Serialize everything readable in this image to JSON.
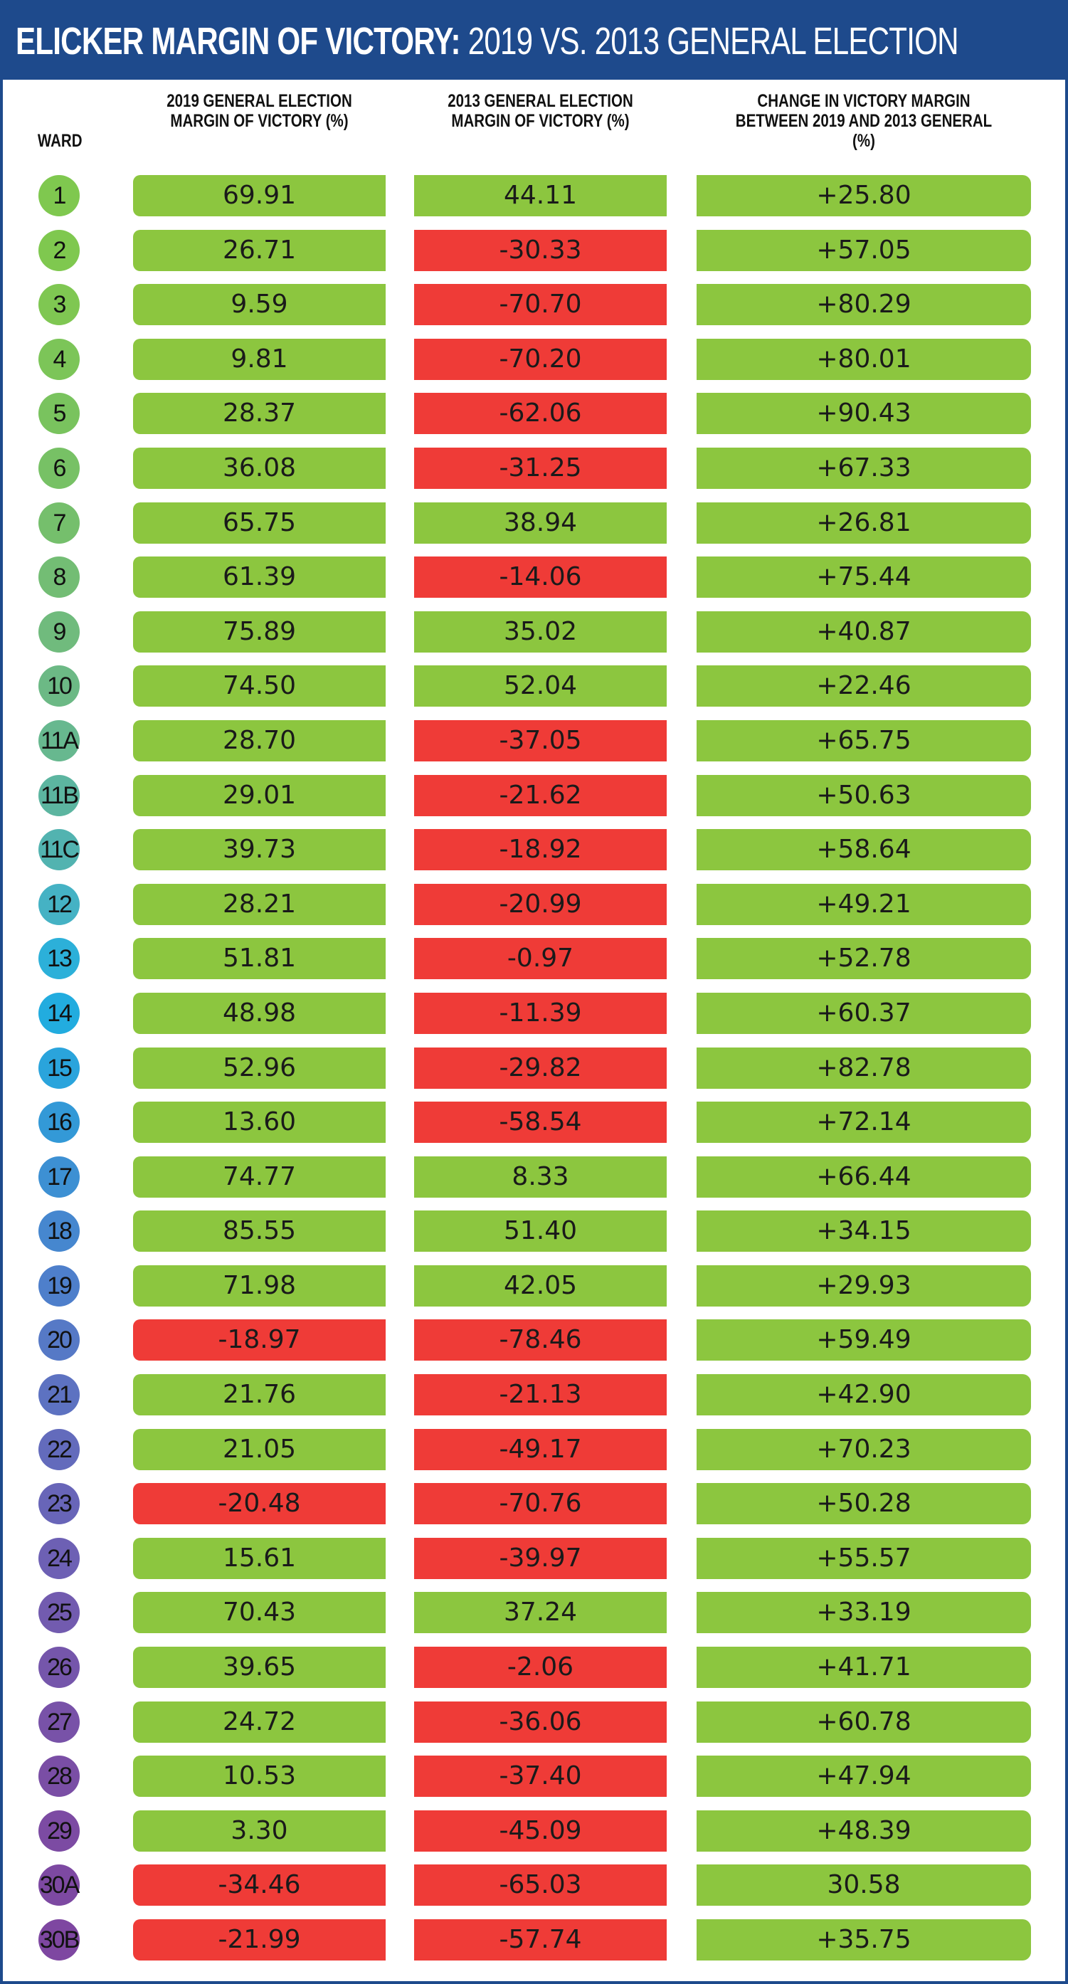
{
  "title": {
    "main": "ELICKER MARGIN OF VICTORY:",
    "sub": " 2019 VS. 2013 GENERAL ELECTION"
  },
  "colors": {
    "header": "#1e4a8c",
    "positive": "#8cc63f",
    "negative": "#ef3b37"
  },
  "chart_data": {
    "type": "table",
    "columns": [
      "WARD",
      "2019 GENERAL ELECTION MARGIN OF VICTORY (%)",
      "2013 GENERAL ELECTION MARGIN OF VICTORY (%)",
      "CHANGE IN VICTORY MARGIN BETWEEN 2019 AND 2013 GENERAL (%)"
    ],
    "rows": [
      {
        "ward": "1",
        "m2019": "69.91",
        "m2013": "44.11",
        "change": "+25.80",
        "color": "#7fc84f"
      },
      {
        "ward": "2",
        "m2019": "26.71",
        "m2013": "-30.33",
        "change": "+57.05",
        "color": "#7fc84f"
      },
      {
        "ward": "3",
        "m2019": "9.59",
        "m2013": "-70.70",
        "change": "+80.29",
        "color": "#7fc752"
      },
      {
        "ward": "4",
        "m2019": "9.81",
        "m2013": "-70.20",
        "change": "+80.01",
        "color": "#7cc558"
      },
      {
        "ward": "5",
        "m2019": "28.37",
        "m2013": "-62.06",
        "change": "+90.43",
        "color": "#79c35e"
      },
      {
        "ward": "6",
        "m2019": "36.08",
        "m2013": "-31.25",
        "change": "+67.33",
        "color": "#77c165"
      },
      {
        "ward": "7",
        "m2019": "65.75",
        "m2013": "38.94",
        "change": "+26.81",
        "color": "#75bf6c"
      },
      {
        "ward": "8",
        "m2019": "61.39",
        "m2013": "-14.06",
        "change": "+75.44",
        "color": "#73bd74"
      },
      {
        "ward": "9",
        "m2019": "75.89",
        "m2013": "35.02",
        "change": "+40.87",
        "color": "#70bb7d"
      },
      {
        "ward": "10",
        "m2019": "74.50",
        "m2013": "52.04",
        "change": "+22.46",
        "color": "#6cb985"
      },
      {
        "ward": "11A",
        "m2019": "28.70",
        "m2013": "-37.05",
        "change": "+65.75",
        "color": "#67b88f"
      },
      {
        "ward": "11B",
        "m2019": "29.01",
        "m2013": "-21.62",
        "change": "+50.63",
        "color": "#5cb5a0"
      },
      {
        "ward": "11C",
        "m2019": "39.73",
        "m2013": "-18.92",
        "change": "+58.64",
        "color": "#52b3b0"
      },
      {
        "ward": "12",
        "m2019": "28.21",
        "m2013": "-20.99",
        "change": "+49.21",
        "color": "#45b2c4"
      },
      {
        "ward": "13",
        "m2019": "51.81",
        "m2013": "-0.97",
        "change": "+52.78",
        "color": "#2cb0d9"
      },
      {
        "ward": "14",
        "m2019": "48.98",
        "m2013": "-11.39",
        "change": "+60.37",
        "color": "#22acdf"
      },
      {
        "ward": "15",
        "m2019": "52.96",
        "m2013": "-29.82",
        "change": "+82.78",
        "color": "#2aa4dc"
      },
      {
        "ward": "16",
        "m2019": "13.60",
        "m2013": "-58.54",
        "change": "+72.14",
        "color": "#3399d7"
      },
      {
        "ward": "17",
        "m2019": "74.77",
        "m2013": "8.33",
        "change": "+66.44",
        "color": "#3d90d3"
      },
      {
        "ward": "18",
        "m2019": "85.55",
        "m2013": "51.40",
        "change": "+34.15",
        "color": "#4687cf"
      },
      {
        "ward": "19",
        "m2019": "71.98",
        "m2013": "42.05",
        "change": "+29.93",
        "color": "#4e7fcb"
      },
      {
        "ward": "20",
        "m2019": "-18.97",
        "m2013": "-78.46",
        "change": "+59.49",
        "color": "#5679c6"
      },
      {
        "ward": "21",
        "m2019": "21.76",
        "m2013": "-21.13",
        "change": "+42.90",
        "color": "#5d72c1"
      },
      {
        "ward": "22",
        "m2019": "21.05",
        "m2013": "-49.17",
        "change": "+70.23",
        "color": "#636bbc"
      },
      {
        "ward": "23",
        "m2019": "-20.48",
        "m2013": "-70.76",
        "change": "+50.28",
        "color": "#6865b8"
      },
      {
        "ward": "24",
        "m2019": "15.61",
        "m2013": "-39.97",
        "change": "+55.57",
        "color": "#6d60b4"
      },
      {
        "ward": "25",
        "m2019": "70.43",
        "m2013": "37.24",
        "change": "+33.19",
        "color": "#725baf"
      },
      {
        "ward": "26",
        "m2019": "39.65",
        "m2013": "-2.06",
        "change": "+41.71",
        "color": "#7556ab"
      },
      {
        "ward": "27",
        "m2019": "24.72",
        "m2013": "-36.06",
        "change": "+60.78",
        "color": "#7852a8"
      },
      {
        "ward": "28",
        "m2019": "10.53",
        "m2013": "-37.40",
        "change": "+47.94",
        "color": "#7a4ea5"
      },
      {
        "ward": "29",
        "m2019": "3.30",
        "m2013": "-45.09",
        "change": "+48.39",
        "color": "#7c4ba3"
      },
      {
        "ward": "30A",
        "m2019": "-34.46",
        "m2013": "-65.03",
        "change": "30.58",
        "color": "#7d49a2"
      },
      {
        "ward": "30B",
        "m2019": "-21.99",
        "m2013": "-57.74",
        "change": "+35.75",
        "color": "#7e47a1"
      }
    ]
  }
}
